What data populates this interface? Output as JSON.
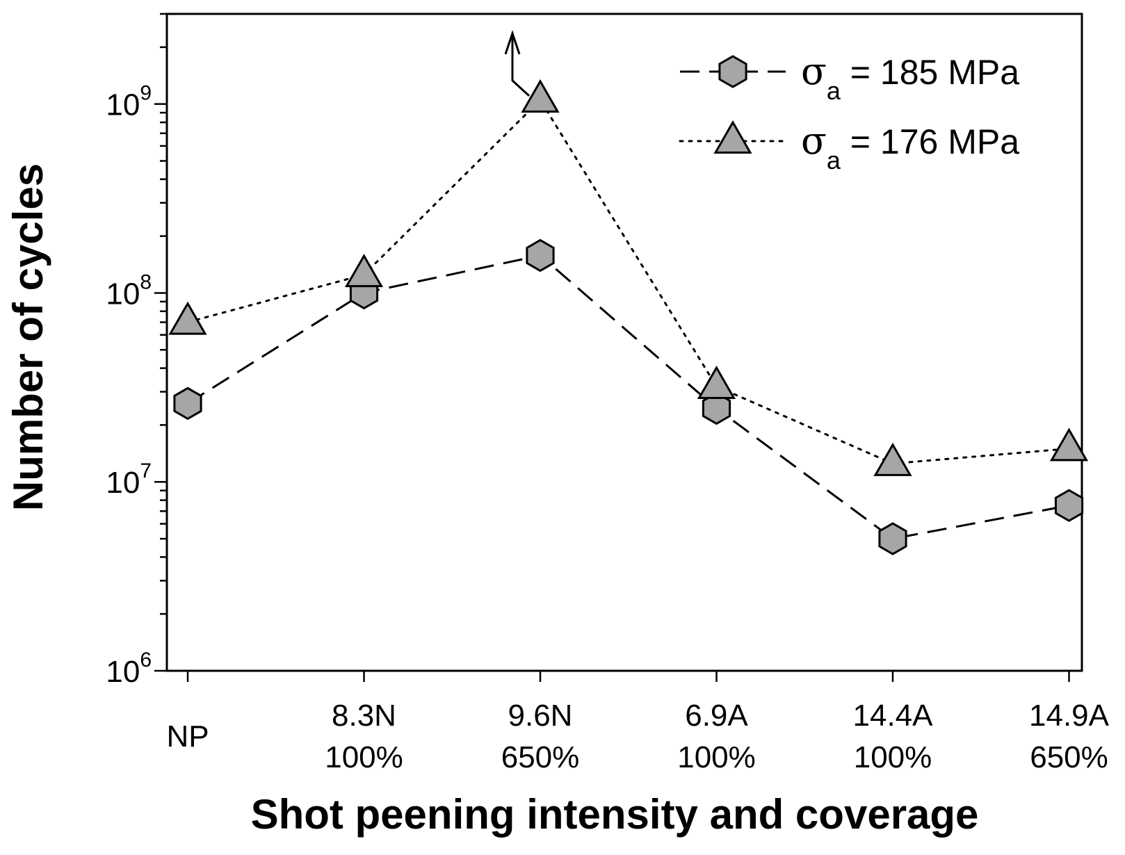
{
  "chart_data": {
    "type": "line",
    "title": "",
    "xlabel": "Shot peening intensity and coverage",
    "ylabel": "Number of cycles",
    "yscale": "log",
    "ylim": [
      1000000,
      3000000000
    ],
    "categories": [
      {
        "line1": "NP",
        "line2": ""
      },
      {
        "line1": "8.3N",
        "line2": "100%"
      },
      {
        "line1": "9.6N",
        "line2": "650%"
      },
      {
        "line1": "6.9A",
        "line2": "100%"
      },
      {
        "line1": "14.4A",
        "line2": "100%"
      },
      {
        "line1": "14.9A",
        "line2": "650%"
      }
    ],
    "y_ticks": [
      {
        "base": "10",
        "exp": "6",
        "value": 1000000
      },
      {
        "base": "10",
        "exp": "7",
        "value": 10000000
      },
      {
        "base": "10",
        "exp": "8",
        "value": 100000000
      },
      {
        "base": "10",
        "exp": "9",
        "value": 1000000000
      }
    ],
    "series": [
      {
        "name": "σa = 185 MPa",
        "legend_symbol": "σ",
        "legend_sub": "a",
        "legend_text": " = 185 MPa",
        "marker": "hexagon",
        "line_style": "dashed",
        "values": [
          26000000,
          100000000,
          158000000,
          24500000,
          5000000,
          7500000
        ]
      },
      {
        "name": "σa = 176 MPa",
        "legend_symbol": "σ",
        "legend_sub": "a",
        "legend_text": " = 176 MPa",
        "marker": "triangle",
        "line_style": "dotted",
        "values": [
          70000000,
          125000000,
          1050000000,
          32000000,
          12500000,
          15000000
        ]
      }
    ],
    "annotations": [
      {
        "type": "runout-arrow",
        "series": 1,
        "index": 2
      }
    ],
    "legend_position": "top-right",
    "grid": false,
    "colors": {
      "marker_fill": "#a6a6a6",
      "line": "#000000"
    }
  }
}
